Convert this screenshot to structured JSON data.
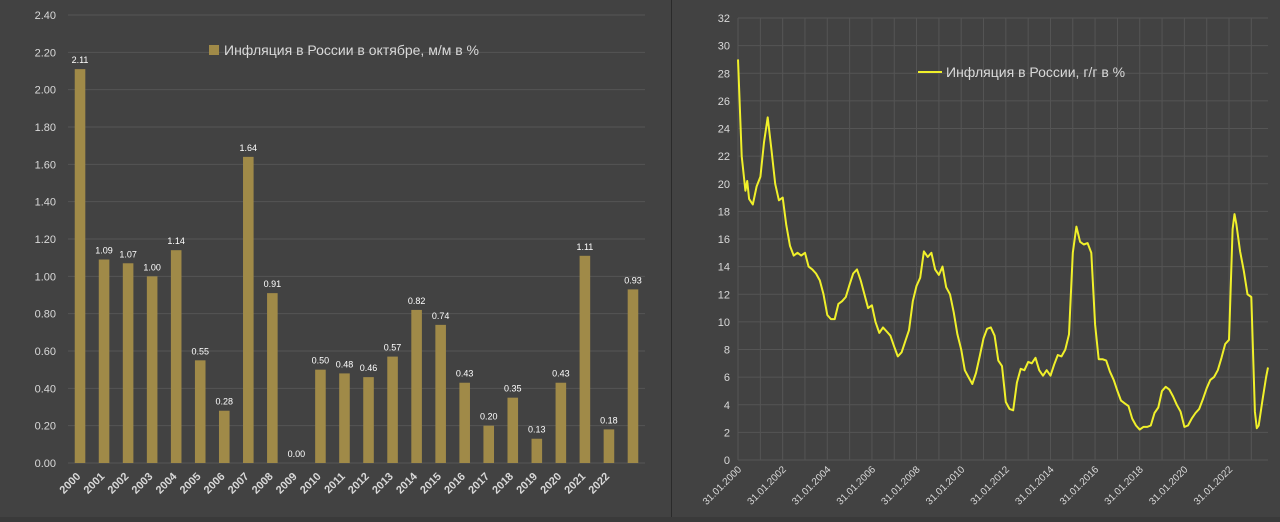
{
  "colors": {
    "background": "#424242",
    "bar": "#a08a48",
    "line": "#f0f02a",
    "grid": "#555555",
    "text": "#d9d9d9"
  },
  "chart_data": [
    {
      "type": "bar",
      "legend": "Инфляция в России в октябре, м/м в %",
      "categories": [
        "2000",
        "2001",
        "2002",
        "2003",
        "2004",
        "2005",
        "2006",
        "2007",
        "2008",
        "2009",
        "2010",
        "2011",
        "2012",
        "2013",
        "2014",
        "2015",
        "2016",
        "2017",
        "2018",
        "2019",
        "2020",
        "2021",
        "2022",
        ""
      ],
      "values": [
        2.11,
        1.09,
        1.07,
        1.0,
        1.14,
        0.55,
        0.28,
        1.64,
        0.91,
        0.0,
        0.5,
        0.48,
        0.46,
        0.57,
        0.82,
        0.74,
        0.43,
        0.2,
        0.35,
        0.13,
        0.43,
        1.11,
        0.18,
        0.93
      ],
      "data_labels": [
        "2.11",
        "1.09",
        "1.07",
        "1.00",
        "1.14",
        "0.55",
        "0.28",
        "1.64",
        "0.91",
        "0.00",
        "0.50",
        "0.48",
        "0.46",
        "0.57",
        "0.82",
        "0.74",
        "0.43",
        "0.20",
        "0.35",
        "0.13",
        "0.43",
        "1.11",
        "0.18",
        "0.93"
      ],
      "ylim": [
        0,
        2.4
      ],
      "yticks": [
        "0.00",
        "0.20",
        "0.40",
        "0.60",
        "0.80",
        "1.00",
        "1.20",
        "1.40",
        "1.60",
        "1.80",
        "2.00",
        "2.20",
        "2.40"
      ],
      "grid": true,
      "legend_position": "top"
    },
    {
      "type": "line",
      "legend": "Инфляция в России, г/г в %",
      "x_start": "2000-01-31",
      "x_end": "2023-10-31",
      "xticks": [
        "31.01.2000",
        "31.01.2002",
        "31.01.2004",
        "31.01.2006",
        "31.01.2008",
        "31.01.2010",
        "31.01.2012",
        "31.01.2014",
        "31.01.2016",
        "31.01.2018",
        "31.01.2020",
        "31.01.2022"
      ],
      "ylim": [
        0,
        32
      ],
      "yticks": [
        "0",
        "2",
        "4",
        "6",
        "8",
        "10",
        "12",
        "14",
        "16",
        "18",
        "20",
        "22",
        "24",
        "26",
        "28",
        "30",
        "32"
      ],
      "grid": true,
      "legend_position": "top",
      "points": [
        [
          "2000-01-31",
          29.0
        ],
        [
          "2000-03-31",
          22.0
        ],
        [
          "2000-05-31",
          19.5
        ],
        [
          "2000-06-30",
          20.2
        ],
        [
          "2000-07-31",
          18.9
        ],
        [
          "2000-09-30",
          18.5
        ],
        [
          "2000-11-30",
          19.8
        ],
        [
          "2001-01-31",
          20.5
        ],
        [
          "2001-03-31",
          23.0
        ],
        [
          "2001-05-31",
          24.8
        ],
        [
          "2001-07-31",
          22.5
        ],
        [
          "2001-09-30",
          20.0
        ],
        [
          "2001-11-30",
          18.8
        ],
        [
          "2002-01-31",
          19.0
        ],
        [
          "2002-03-31",
          17.0
        ],
        [
          "2002-05-31",
          15.5
        ],
        [
          "2002-07-31",
          14.8
        ],
        [
          "2002-09-30",
          15.0
        ],
        [
          "2002-11-30",
          14.8
        ],
        [
          "2003-01-31",
          15.0
        ],
        [
          "2003-03-31",
          14.0
        ],
        [
          "2003-05-31",
          13.8
        ],
        [
          "2003-07-31",
          13.5
        ],
        [
          "2003-09-30",
          13.0
        ],
        [
          "2003-11-30",
          12.0
        ],
        [
          "2004-01-31",
          10.5
        ],
        [
          "2004-03-31",
          10.2
        ],
        [
          "2004-05-31",
          10.2
        ],
        [
          "2004-07-31",
          11.3
        ],
        [
          "2004-09-30",
          11.5
        ],
        [
          "2004-11-30",
          11.8
        ],
        [
          "2005-01-31",
          12.7
        ],
        [
          "2005-03-31",
          13.5
        ],
        [
          "2005-05-31",
          13.8
        ],
        [
          "2005-07-31",
          13.0
        ],
        [
          "2005-09-30",
          12.0
        ],
        [
          "2005-11-30",
          11.0
        ],
        [
          "2006-01-31",
          11.2
        ],
        [
          "2006-03-31",
          10.0
        ],
        [
          "2006-05-31",
          9.2
        ],
        [
          "2006-07-31",
          9.6
        ],
        [
          "2006-09-30",
          9.3
        ],
        [
          "2006-11-30",
          9.0
        ],
        [
          "2007-01-31",
          8.2
        ],
        [
          "2007-03-31",
          7.5
        ],
        [
          "2007-05-31",
          7.8
        ],
        [
          "2007-07-31",
          8.6
        ],
        [
          "2007-09-30",
          9.4
        ],
        [
          "2007-11-30",
          11.5
        ],
        [
          "2008-01-31",
          12.6
        ],
        [
          "2008-03-31",
          13.2
        ],
        [
          "2008-05-31",
          15.1
        ],
        [
          "2008-07-31",
          14.7
        ],
        [
          "2008-09-30",
          15.0
        ],
        [
          "2008-11-30",
          13.8
        ],
        [
          "2009-01-31",
          13.4
        ],
        [
          "2009-03-31",
          14.0
        ],
        [
          "2009-05-31",
          12.5
        ],
        [
          "2009-07-31",
          12.0
        ],
        [
          "2009-09-30",
          10.7
        ],
        [
          "2009-11-30",
          9.1
        ],
        [
          "2010-01-31",
          8.0
        ],
        [
          "2010-03-31",
          6.5
        ],
        [
          "2010-05-31",
          6.0
        ],
        [
          "2010-07-31",
          5.5
        ],
        [
          "2010-09-30",
          6.3
        ],
        [
          "2010-11-30",
          7.5
        ],
        [
          "2011-01-31",
          8.8
        ],
        [
          "2011-03-31",
          9.5
        ],
        [
          "2011-05-31",
          9.6
        ],
        [
          "2011-07-31",
          9.0
        ],
        [
          "2011-09-30",
          7.2
        ],
        [
          "2011-11-30",
          6.8
        ],
        [
          "2012-01-31",
          4.2
        ],
        [
          "2012-03-31",
          3.7
        ],
        [
          "2012-05-31",
          3.6
        ],
        [
          "2012-07-31",
          5.6
        ],
        [
          "2012-09-30",
          6.6
        ],
        [
          "2012-11-30",
          6.5
        ],
        [
          "2013-01-31",
          7.1
        ],
        [
          "2013-03-31",
          7.0
        ],
        [
          "2013-05-31",
          7.4
        ],
        [
          "2013-07-31",
          6.5
        ],
        [
          "2013-09-30",
          6.1
        ],
        [
          "2013-11-30",
          6.5
        ],
        [
          "2014-01-31",
          6.1
        ],
        [
          "2014-03-31",
          6.9
        ],
        [
          "2014-05-31",
          7.6
        ],
        [
          "2014-07-31",
          7.5
        ],
        [
          "2014-09-30",
          8.0
        ],
        [
          "2014-11-30",
          9.1
        ],
        [
          "2015-01-31",
          15.0
        ],
        [
          "2015-03-31",
          16.9
        ],
        [
          "2015-05-31",
          15.8
        ],
        [
          "2015-07-31",
          15.6
        ],
        [
          "2015-09-30",
          15.7
        ],
        [
          "2015-11-30",
          15.0
        ],
        [
          "2016-01-31",
          9.8
        ],
        [
          "2016-03-31",
          7.3
        ],
        [
          "2016-05-31",
          7.3
        ],
        [
          "2016-07-31",
          7.2
        ],
        [
          "2016-09-30",
          6.4
        ],
        [
          "2016-11-30",
          5.8
        ],
        [
          "2017-01-31",
          5.0
        ],
        [
          "2017-03-31",
          4.3
        ],
        [
          "2017-05-31",
          4.1
        ],
        [
          "2017-07-31",
          3.9
        ],
        [
          "2017-09-30",
          3.0
        ],
        [
          "2017-11-30",
          2.5
        ],
        [
          "2018-01-31",
          2.2
        ],
        [
          "2018-03-31",
          2.4
        ],
        [
          "2018-05-31",
          2.4
        ],
        [
          "2018-07-31",
          2.5
        ],
        [
          "2018-09-30",
          3.4
        ],
        [
          "2018-11-30",
          3.8
        ],
        [
          "2019-01-31",
          5.0
        ],
        [
          "2019-03-31",
          5.3
        ],
        [
          "2019-05-31",
          5.1
        ],
        [
          "2019-07-31",
          4.6
        ],
        [
          "2019-09-30",
          4.0
        ],
        [
          "2019-11-30",
          3.5
        ],
        [
          "2020-01-31",
          2.4
        ],
        [
          "2020-03-31",
          2.5
        ],
        [
          "2020-05-31",
          3.0
        ],
        [
          "2020-07-31",
          3.4
        ],
        [
          "2020-09-30",
          3.7
        ],
        [
          "2020-11-30",
          4.4
        ],
        [
          "2021-01-31",
          5.2
        ],
        [
          "2021-03-31",
          5.8
        ],
        [
          "2021-05-31",
          6.0
        ],
        [
          "2021-07-31",
          6.5
        ],
        [
          "2021-09-30",
          7.4
        ],
        [
          "2021-11-30",
          8.4
        ],
        [
          "2022-01-31",
          8.7
        ],
        [
          "2022-03-31",
          16.7
        ],
        [
          "2022-04-30",
          17.8
        ],
        [
          "2022-05-31",
          17.1
        ],
        [
          "2022-07-31",
          15.1
        ],
        [
          "2022-09-30",
          13.7
        ],
        [
          "2022-11-30",
          12.0
        ],
        [
          "2023-01-31",
          11.8
        ],
        [
          "2023-03-31",
          3.5
        ],
        [
          "2023-04-30",
          2.3
        ],
        [
          "2023-05-31",
          2.5
        ],
        [
          "2023-07-31",
          4.3
        ],
        [
          "2023-09-30",
          6.0
        ],
        [
          "2023-10-31",
          6.7
        ]
      ]
    }
  ]
}
